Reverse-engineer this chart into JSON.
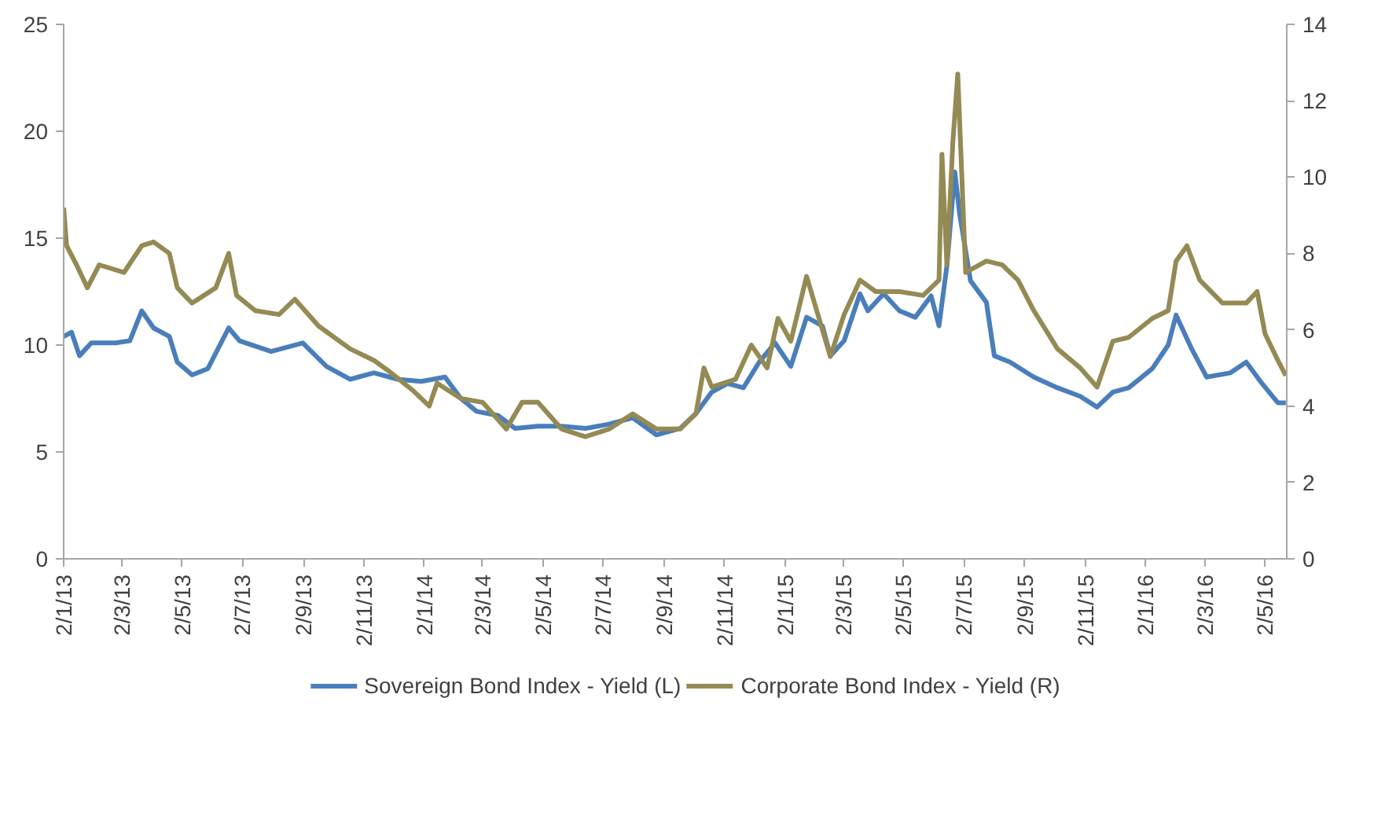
{
  "chart_data": {
    "type": "line",
    "legend": "bottom",
    "grid": false,
    "line_style": "solid",
    "marker": "none",
    "xlim": [
      "2013-01-02",
      "2016-05-24"
    ],
    "xticks": [
      {
        "value": "2013-01-02",
        "label": "2/1/13"
      },
      {
        "value": "2013-03-02",
        "label": "2/3/13"
      },
      {
        "value": "2013-05-02",
        "label": "2/5/13"
      },
      {
        "value": "2013-07-02",
        "label": "2/7/13"
      },
      {
        "value": "2013-09-02",
        "label": "2/9/13"
      },
      {
        "value": "2013-11-02",
        "label": "2/11/13"
      },
      {
        "value": "2014-01-02",
        "label": "2/1/14"
      },
      {
        "value": "2014-03-02",
        "label": "2/3/14"
      },
      {
        "value": "2014-05-02",
        "label": "2/5/14"
      },
      {
        "value": "2014-07-02",
        "label": "2/7/14"
      },
      {
        "value": "2014-09-02",
        "label": "2/9/14"
      },
      {
        "value": "2014-11-02",
        "label": "2/11/14"
      },
      {
        "value": "2015-01-02",
        "label": "2/1/15"
      },
      {
        "value": "2015-03-02",
        "label": "2/3/15"
      },
      {
        "value": "2015-05-02",
        "label": "2/5/15"
      },
      {
        "value": "2015-07-02",
        "label": "2/7/15"
      },
      {
        "value": "2015-09-02",
        "label": "2/9/15"
      },
      {
        "value": "2015-11-02",
        "label": "2/11/15"
      },
      {
        "value": "2016-01-02",
        "label": "2/1/16"
      },
      {
        "value": "2016-03-02",
        "label": "2/3/16"
      },
      {
        "value": "2016-05-02",
        "label": "2/5/16"
      }
    ],
    "ylim": [
      0,
      25
    ],
    "yticks": [
      0,
      5,
      10,
      15,
      20,
      25
    ],
    "y2lim": [
      0,
      14
    ],
    "y2ticks": [
      0,
      2,
      4,
      6,
      8,
      10,
      12,
      14
    ],
    "series": [
      {
        "name": "Sovereign Bond Index - Yield (L)",
        "color": "#4a7ebb",
        "x": [
          "2013-01-02",
          "2013-01-10",
          "2013-01-18",
          "2013-01-30",
          "2013-02-24",
          "2013-03-10",
          "2013-03-22",
          "2013-04-03",
          "2013-04-19",
          "2013-04-27",
          "2013-05-12",
          "2013-05-28",
          "2013-06-18",
          "2013-06-29",
          "2013-07-31",
          "2013-09-01",
          "2013-09-25",
          "2013-10-19",
          "2013-11-12",
          "2013-12-06",
          "2013-12-30",
          "2014-01-23",
          "2014-02-08",
          "2014-02-24",
          "2014-03-18",
          "2014-04-04",
          "2014-04-27",
          "2014-05-21",
          "2014-06-14",
          "2014-07-08",
          "2014-08-01",
          "2014-08-25",
          "2014-09-18",
          "2014-10-04",
          "2014-10-20",
          "2014-11-05",
          "2014-11-21",
          "2014-12-07",
          "2014-12-23",
          "2015-01-08",
          "2015-01-24",
          "2015-02-09",
          "2015-02-17",
          "2015-03-03",
          "2015-03-19",
          "2015-03-27",
          "2015-04-12",
          "2015-04-28",
          "2015-05-14",
          "2015-05-30",
          "2015-06-07",
          "2015-06-15",
          "2015-06-23",
          "2015-06-28",
          "2015-07-09",
          "2015-07-25",
          "2015-08-02",
          "2015-08-18",
          "2015-09-11",
          "2015-10-05",
          "2015-10-28",
          "2015-11-14",
          "2015-11-30",
          "2015-12-16",
          "2016-01-09",
          "2016-01-25",
          "2016-02-02",
          "2016-02-18",
          "2016-03-04",
          "2016-03-28",
          "2016-04-13",
          "2016-04-29",
          "2016-05-15",
          "2016-05-23"
        ],
        "values": [
          10.4,
          10.6,
          9.5,
          10.1,
          10.1,
          10.2,
          11.6,
          10.8,
          10.4,
          9.2,
          8.6,
          8.9,
          10.8,
          10.2,
          9.7,
          10.1,
          9.0,
          8.4,
          8.7,
          8.4,
          8.3,
          8.5,
          7.5,
          6.9,
          6.7,
          6.1,
          6.2,
          6.2,
          6.1,
          6.3,
          6.6,
          5.8,
          6.1,
          6.8,
          7.8,
          8.2,
          8.0,
          9.2,
          10.1,
          9.0,
          11.3,
          10.9,
          9.5,
          10.2,
          12.4,
          11.6,
          12.4,
          11.6,
          11.3,
          12.3,
          10.9,
          13.7,
          18.1,
          16.1,
          13.0,
          12.0,
          9.5,
          9.2,
          8.5,
          8.0,
          7.6,
          7.1,
          7.8,
          8.0,
          8.9,
          10.0,
          11.4,
          9.8,
          8.5,
          8.7,
          9.2,
          8.2,
          7.3,
          7.3
        ]
      },
      {
        "name": "Corporate Bond Index - Yield (R)",
        "color": "#948a54",
        "axis": "y2",
        "x": [
          "2013-01-02",
          "2013-01-05",
          "2013-01-15",
          "2013-01-26",
          "2013-02-07",
          "2013-03-04",
          "2013-03-22",
          "2013-04-03",
          "2013-04-19",
          "2013-04-27",
          "2013-05-12",
          "2013-06-05",
          "2013-06-18",
          "2013-06-26",
          "2013-07-15",
          "2013-08-08",
          "2013-08-24",
          "2013-09-17",
          "2013-10-19",
          "2013-11-12",
          "2013-11-28",
          "2013-12-22",
          "2014-01-07",
          "2014-01-15",
          "2014-02-08",
          "2014-03-02",
          "2014-03-26",
          "2014-04-11",
          "2014-04-27",
          "2014-05-21",
          "2014-06-14",
          "2014-07-08",
          "2014-08-01",
          "2014-08-25",
          "2014-09-18",
          "2014-10-04",
          "2014-10-12",
          "2014-10-20",
          "2014-11-13",
          "2014-11-29",
          "2014-12-15",
          "2014-12-26",
          "2015-01-08",
          "2015-01-24",
          "2015-02-17",
          "2015-03-03",
          "2015-03-19",
          "2015-04-04",
          "2015-04-28",
          "2015-05-22",
          "2015-06-07",
          "2015-06-10",
          "2015-06-15",
          "2015-06-21",
          "2015-06-26",
          "2015-07-04",
          "2015-07-25",
          "2015-08-10",
          "2015-08-26",
          "2015-09-11",
          "2015-10-05",
          "2015-10-28",
          "2015-11-14",
          "2015-11-30",
          "2015-12-16",
          "2016-01-09",
          "2016-01-25",
          "2016-02-02",
          "2016-02-13",
          "2016-02-26",
          "2016-03-20",
          "2016-04-13",
          "2016-04-24",
          "2016-05-02",
          "2016-05-15",
          "2016-05-23"
        ],
        "values": [
          9.2,
          8.2,
          7.7,
          7.1,
          7.7,
          7.5,
          8.2,
          8.3,
          8.0,
          7.1,
          6.7,
          7.1,
          8.0,
          6.9,
          6.5,
          6.4,
          6.8,
          6.1,
          5.5,
          5.2,
          4.9,
          4.4,
          4.0,
          4.6,
          4.2,
          4.1,
          3.4,
          4.1,
          4.1,
          3.4,
          3.2,
          3.4,
          3.8,
          3.4,
          3.4,
          3.8,
          5.0,
          4.5,
          4.7,
          5.6,
          5.0,
          6.3,
          5.7,
          7.4,
          5.3,
          6.4,
          7.3,
          7.0,
          7.0,
          6.9,
          7.3,
          10.6,
          7.7,
          10.9,
          12.7,
          7.5,
          7.8,
          7.7,
          7.3,
          6.5,
          5.5,
          5.0,
          4.5,
          5.7,
          5.8,
          6.3,
          6.5,
          7.8,
          8.2,
          7.3,
          6.7,
          6.7,
          7.0,
          5.9,
          5.2,
          4.8
        ]
      }
    ]
  }
}
